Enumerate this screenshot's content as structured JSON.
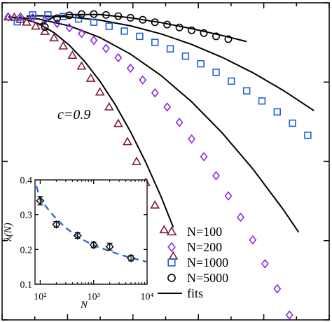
{
  "chart_data": [
    {
      "type": "scatter",
      "annotation": "c=0.9",
      "xlabel": "",
      "ylabel": "",
      "grid": false,
      "legend_position": "bottom-right",
      "legend": [
        "N=100",
        "N=200",
        "N=1000",
        "N=5000",
        "fits"
      ],
      "series": [
        {
          "name": "N=100",
          "marker": "triangle",
          "color": "#7b1c3c",
          "x": [
            0.0,
            0.02,
            0.04,
            0.06,
            0.09,
            0.12,
            0.15,
            0.18,
            0.21,
            0.24,
            0.27,
            0.3,
            0.33,
            0.36,
            0.39,
            0.42,
            0.45,
            0.48,
            0.51,
            0.54
          ],
          "y": [
            0.0,
            -0.01,
            -0.06,
            -0.13,
            -0.23,
            -0.36,
            -0.52,
            -0.72,
            -0.95,
            -1.22,
            -1.52,
            -1.86,
            -2.23,
            -2.64,
            -3.09,
            -3.58,
            -4.1,
            -4.66,
            -5.27,
            -5.92
          ]
        },
        {
          "name": "N=200",
          "marker": "diamond",
          "color": "#8a2be2",
          "x": [
            0.0,
            0.04,
            0.08,
            0.12,
            0.16,
            0.2,
            0.24,
            0.28,
            0.32,
            0.36,
            0.4,
            0.44,
            0.48,
            0.52,
            0.56,
            0.6,
            0.64,
            0.68,
            0.72,
            0.76,
            0.8,
            0.84,
            0.88,
            0.92
          ],
          "y": [
            0.0,
            0.0,
            -0.02,
            -0.08,
            -0.16,
            -0.27,
            -0.41,
            -0.58,
            -0.78,
            -1.01,
            -1.27,
            -1.56,
            -1.88,
            -2.23,
            -2.61,
            -3.02,
            -3.46,
            -3.93,
            -4.43,
            -4.96,
            -5.52,
            -6.11,
            -6.73,
            -7.38
          ]
        },
        {
          "name": "N=1000",
          "marker": "square",
          "color": "#1f5fd6",
          "x": [
            0.03,
            0.08,
            0.13,
            0.18,
            0.23,
            0.28,
            0.33,
            0.38,
            0.43,
            0.48,
            0.53,
            0.58,
            0.63,
            0.68,
            0.73,
            0.78,
            0.83,
            0.88,
            0.93,
            0.98
          ],
          "y": [
            -0.12,
            0.05,
            0.05,
            0.01,
            -0.05,
            -0.13,
            -0.23,
            -0.35,
            -0.48,
            -0.63,
            -0.79,
            -0.97,
            -1.16,
            -1.37,
            -1.59,
            -1.83,
            -2.08,
            -2.35,
            -2.63,
            -2.93
          ]
        },
        {
          "name": "N=5000",
          "marker": "circle",
          "color": "#000000",
          "x": [
            0.12,
            0.16,
            0.2,
            0.24,
            0.28,
            0.32,
            0.36,
            0.4,
            0.44,
            0.48,
            0.52,
            0.56,
            0.6,
            0.64,
            0.68,
            0.72
          ],
          "y": [
            -0.25,
            -0.03,
            0.04,
            0.07,
            0.07,
            0.05,
            0.02,
            -0.02,
            -0.07,
            -0.13,
            -0.19,
            -0.26,
            -0.33,
            -0.4,
            -0.48,
            -0.55
          ]
        }
      ],
      "fits": [
        {
          "name": "fits",
          "x": [
            0.0,
            0.05,
            0.1,
            0.15,
            0.2,
            0.25,
            0.3,
            0.35,
            0.4,
            0.45,
            0.5,
            0.54
          ],
          "y": [
            0.0,
            -0.04,
            -0.17,
            -0.39,
            -0.7,
            -1.1,
            -1.59,
            -2.17,
            -2.84,
            -3.6,
            -4.45,
            -5.21
          ]
        },
        {
          "name": "fits",
          "x": [
            0.0,
            0.1,
            0.2,
            0.3,
            0.4,
            0.5,
            0.6,
            0.7,
            0.8,
            0.9,
            0.95
          ],
          "y": [
            0.0,
            -0.05,
            -0.22,
            -0.51,
            -0.92,
            -1.45,
            -2.1,
            -2.87,
            -3.76,
            -4.77,
            -5.33
          ]
        },
        {
          "name": "fits",
          "x": [
            0.06,
            0.1,
            0.2,
            0.3,
            0.4,
            0.5,
            0.6,
            0.7,
            0.8,
            0.9,
            1.0
          ],
          "y": [
            0.02,
            0.03,
            0.0,
            -0.08,
            -0.22,
            -0.42,
            -0.68,
            -1.0,
            -1.38,
            -1.82,
            -2.32
          ]
        },
        {
          "name": "fits",
          "x": [
            0.1,
            0.15,
            0.2,
            0.3,
            0.4,
            0.5,
            0.6,
            0.7,
            0.78
          ],
          "y": [
            -0.2,
            0.0,
            0.06,
            0.06,
            -0.02,
            -0.14,
            -0.29,
            -0.46,
            -0.61
          ]
        }
      ],
      "xlim": [
        -0.02,
        1.05
      ],
      "ylim": [
        -7.5,
        0.35
      ]
    },
    {
      "type": "scatter",
      "inset": true,
      "xlabel": "N",
      "ylabel": "λ(N)",
      "xscale": "log",
      "xlim": [
        80,
        10000
      ],
      "ylim": [
        0.1,
        0.4
      ],
      "xticks": [
        "10²",
        "10³",
        "10⁴"
      ],
      "yticks": [
        "0.1",
        "0.2",
        "0.3",
        "0.4"
      ],
      "points": {
        "x": [
          100,
          200,
          500,
          1000,
          2000,
          5000
        ],
        "y": [
          0.34,
          0.272,
          0.24,
          0.213,
          0.208,
          0.175
        ],
        "yerr": [
          0.012,
          0.008,
          0.008,
          0.008,
          0.01,
          0.008
        ]
      },
      "fit": {
        "style": "dashed",
        "color": "#1f5fd6",
        "x": [
          85,
          100,
          150,
          200,
          300,
          500,
          700,
          1000,
          2000,
          3000,
          5000,
          10000
        ],
        "y": [
          0.382,
          0.345,
          0.31,
          0.288,
          0.262,
          0.238,
          0.224,
          0.212,
          0.195,
          0.186,
          0.176,
          0.164
        ]
      }
    }
  ]
}
